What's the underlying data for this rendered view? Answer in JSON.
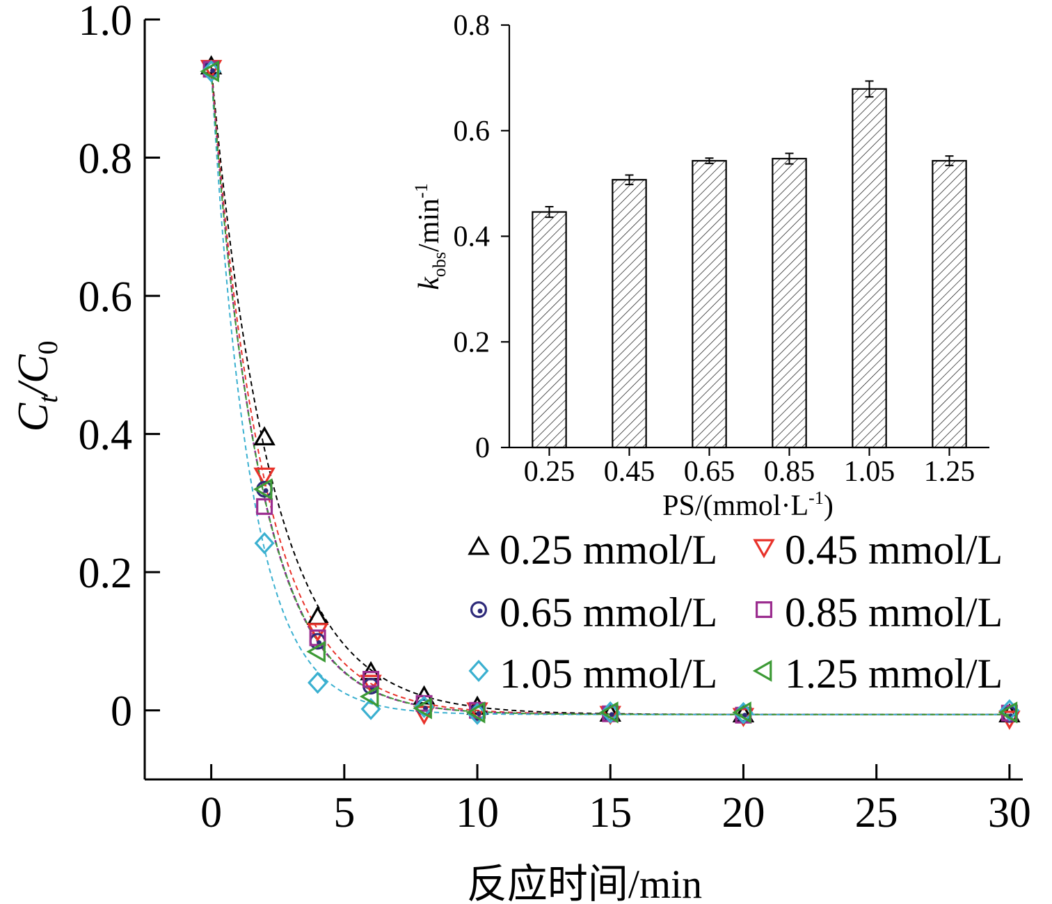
{
  "chart_data": [
    {
      "type": "scatter",
      "xlabel": "反应时间/min",
      "ylabel": {
        "main": "C",
        "sub1": "t",
        "slash": "/C",
        "sub2": "0"
      },
      "xlim": [
        -2.5,
        30.5
      ],
      "ylim": [
        -0.1,
        1.0
      ],
      "xticks": [
        0,
        5,
        10,
        15,
        20,
        25,
        30
      ],
      "xtick_labels": [
        "0",
        "5",
        "10",
        "15",
        "20",
        "25",
        "30"
      ],
      "yticks": [
        0,
        0.2,
        0.4,
        0.6,
        0.8,
        1.0
      ],
      "ytick_labels": [
        "0",
        "0.2",
        "0.4",
        "0.6",
        "0.8",
        "1.0"
      ],
      "x": [
        0,
        2,
        4,
        6,
        8,
        10,
        15,
        20,
        30
      ],
      "series": [
        {
          "name": "0.25 mmol/L",
          "marker": "triangle-up",
          "color": "#000000",
          "k": 0.446,
          "values": [
            0.932,
            0.395,
            0.135,
            0.055,
            0.02,
            0.005,
            -0.005,
            -0.006,
            -0.006
          ]
        },
        {
          "name": "0.45 mmol/L",
          "marker": "triangle-down",
          "color": "#e8322a",
          "k": 0.507,
          "values": [
            0.93,
            0.34,
            0.115,
            0.04,
            -0.005,
            0.0,
            -0.005,
            -0.008,
            -0.012
          ]
        },
        {
          "name": "0.65 mmol/L",
          "marker": "circle",
          "color": "#2e2a7a",
          "k": 0.543,
          "values": [
            0.928,
            0.32,
            0.1,
            0.035,
            0.005,
            -0.003,
            -0.004,
            -0.005,
            -0.006
          ]
        },
        {
          "name": "0.85 mmol/L",
          "marker": "square",
          "color": "#9b2d8f",
          "k": 0.547,
          "values": [
            0.928,
            0.295,
            0.105,
            0.045,
            0.01,
            0.0,
            -0.005,
            -0.007,
            -0.004
          ]
        },
        {
          "name": "1.05 mmol/L",
          "marker": "diamond",
          "color": "#3ab0d0",
          "k": 0.679,
          "values": [
            0.925,
            0.242,
            0.04,
            0.002,
            0.005,
            -0.005,
            -0.003,
            -0.004,
            0.0
          ]
        },
        {
          "name": "1.25 mmol/L",
          "marker": "triangle-left",
          "color": "#3c9a35",
          "k": 0.543,
          "values": [
            0.925,
            0.32,
            0.085,
            0.02,
            0.003,
            -0.003,
            -0.003,
            -0.003,
            -0.003
          ]
        }
      ],
      "fit_curves": "dashed",
      "legend": "bottom-right"
    },
    {
      "type": "bar",
      "inset": true,
      "xlabel": {
        "main": "PS/(mmol·L",
        "sup": "-1",
        "tail": ")"
      },
      "ylabel": {
        "main": "k",
        "sub": "obs",
        "mid": "/min",
        "sup": "-1"
      },
      "categories": [
        "0.25",
        "0.45",
        "0.65",
        "0.85",
        "1.05",
        "1.25"
      ],
      "values": [
        0.446,
        0.507,
        0.543,
        0.547,
        0.679,
        0.543
      ],
      "errors": [
        0.01,
        0.009,
        0.005,
        0.01,
        0.015,
        0.009
      ],
      "ylim": [
        0,
        0.8
      ],
      "yticks": [
        0,
        0.2,
        0.4,
        0.6,
        0.8
      ],
      "ytick_labels": [
        "0",
        "0.2",
        "0.4",
        "0.6",
        "0.8"
      ],
      "pattern": "diagonal-hatch"
    }
  ]
}
